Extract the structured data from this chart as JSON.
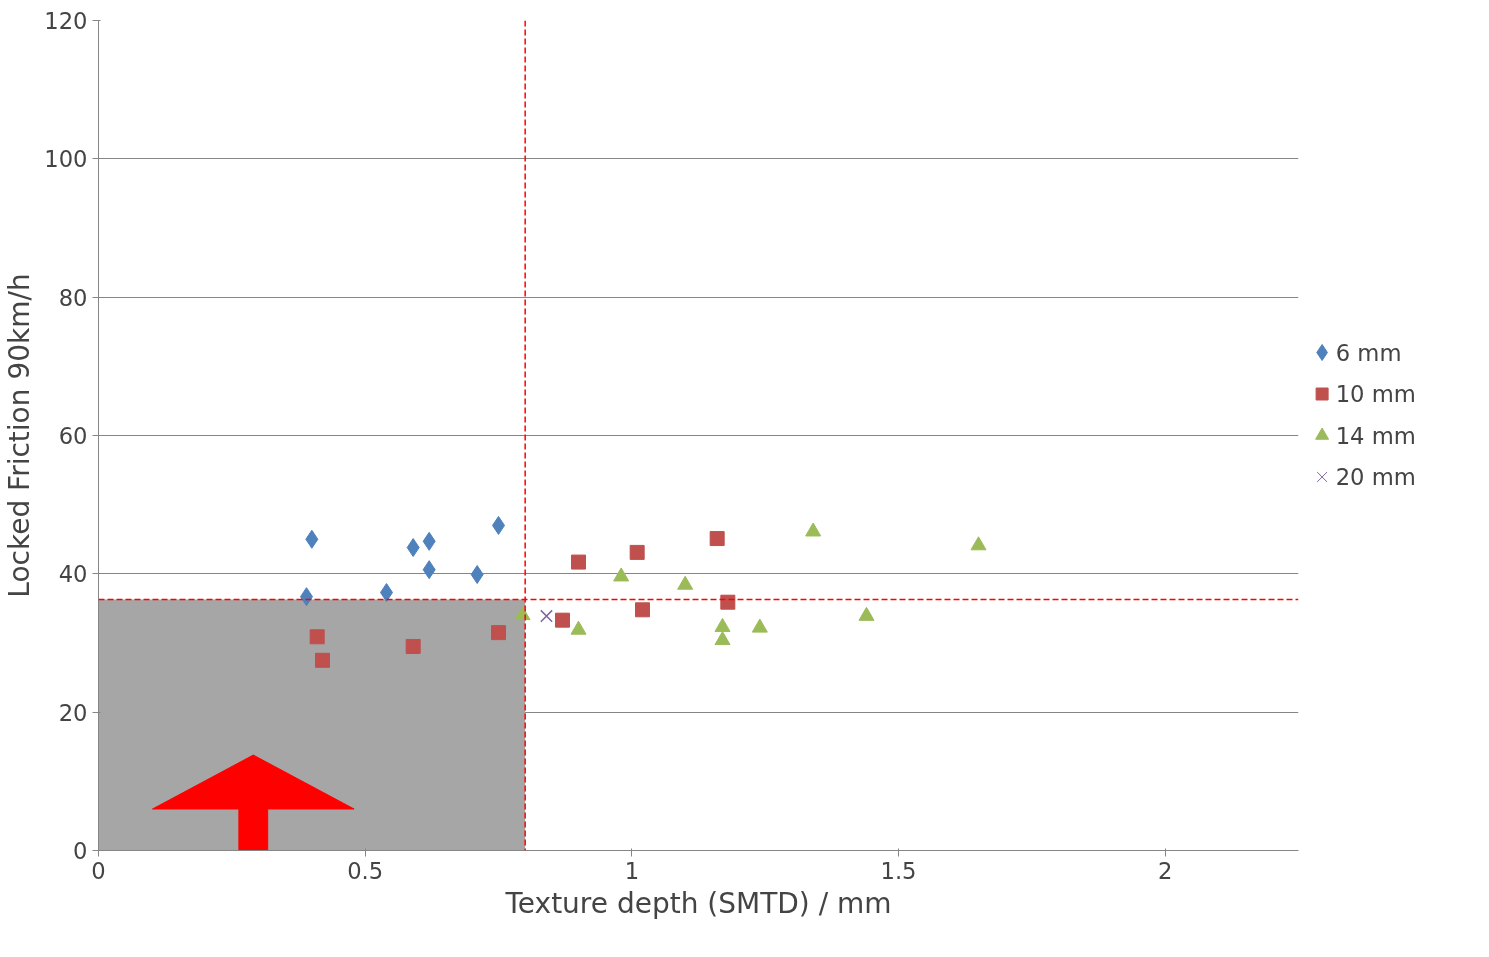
{
  "chart_data": {
    "type": "scatter",
    "xlabel": "Texture depth (SMTD) / mm",
    "ylabel": "Locked Friction 90km/h",
    "xlim": [
      0,
      2.25
    ],
    "ylim": [
      0,
      120
    ],
    "xticks": [
      0,
      0.5,
      1,
      1.5,
      2
    ],
    "yticks": [
      0,
      20,
      40,
      60,
      80,
      100,
      120
    ],
    "grid": "y",
    "legend": "right",
    "series": [
      {
        "name": "6 mm",
        "color": "#4f81bd",
        "marker": "diamond",
        "x": [
          0.4,
          0.39,
          0.54,
          0.59,
          0.62,
          0.62,
          0.71,
          0.75
        ],
        "values": [
          45.0,
          36.7,
          37.3,
          43.8,
          44.7,
          40.6,
          39.9,
          47.0
        ]
      },
      {
        "name": "10 mm",
        "color": "#c0504d",
        "marker": "square",
        "x": [
          0.41,
          0.42,
          0.59,
          0.75,
          0.87,
          0.9,
          1.01,
          1.02,
          1.16,
          1.18
        ],
        "values": [
          30.9,
          27.5,
          29.5,
          31.5,
          33.3,
          41.7,
          43.1,
          34.8,
          45.1,
          35.9
        ]
      },
      {
        "name": "14 mm",
        "color": "#9bbb59",
        "marker": "triangle",
        "x": [
          0.795,
          0.9,
          0.98,
          1.1,
          1.17,
          1.17,
          1.24,
          1.34,
          1.44,
          1.65
        ],
        "values": [
          34.0,
          31.9,
          39.6,
          38.4,
          32.3,
          30.4,
          32.2,
          46.1,
          33.9,
          44.1
        ]
      },
      {
        "name": "20 mm",
        "color": "#8064a2",
        "marker": "cross",
        "x": [
          0.84
        ],
        "values": [
          33.9
        ]
      }
    ],
    "ref_lines": [
      {
        "axis": "x",
        "value": 0.8,
        "color": "#ff0000",
        "line_style": "dashed"
      },
      {
        "axis": "y",
        "value": 36.3,
        "color": "#ff0000",
        "line_style": "dashed"
      }
    ],
    "bands": [
      {
        "axis": "x",
        "from": 0,
        "to": 0.8,
        "color": "#a6a6a6"
      }
    ]
  }
}
